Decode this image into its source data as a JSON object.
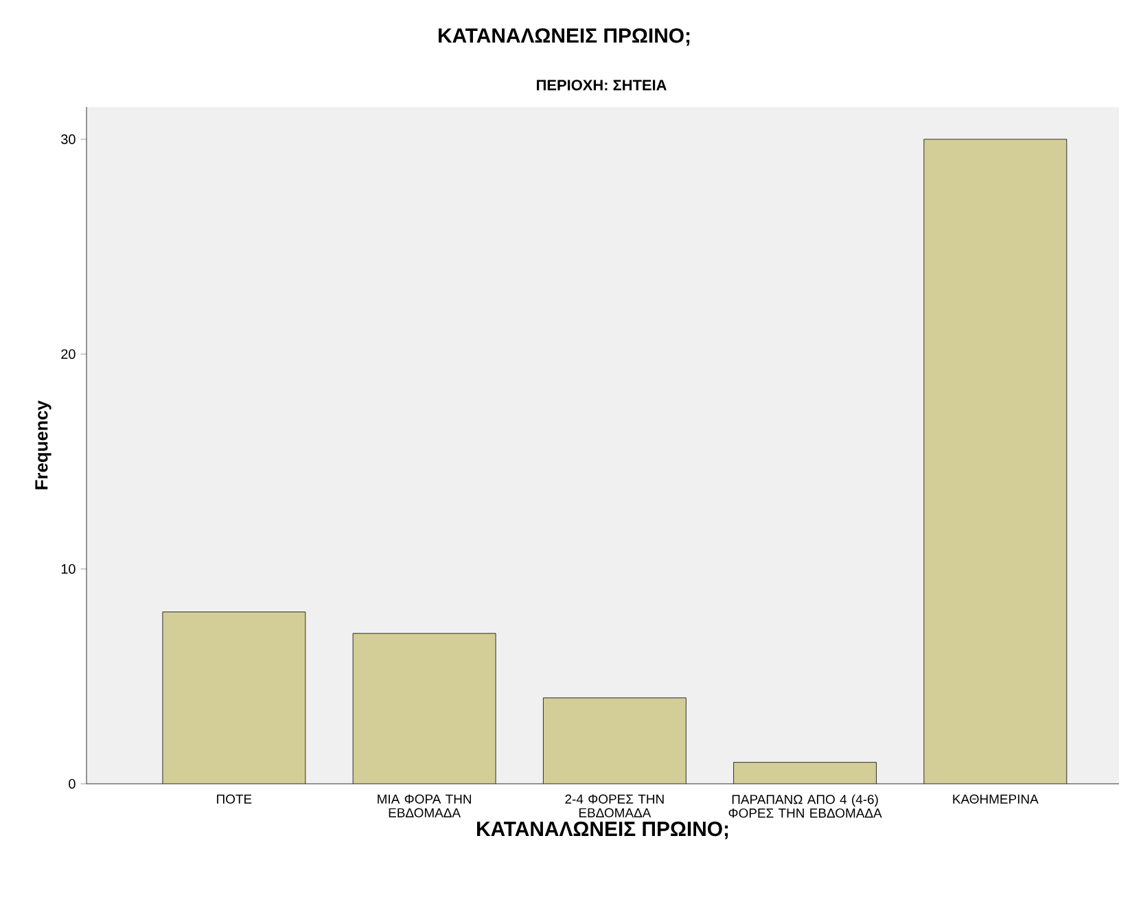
{
  "chart_data": {
    "type": "bar",
    "title": "ΚΑΤΑΝΑΛΩΝΕΙΣ ΠΡΩΙΝΟ;",
    "subtitle": "ΠΕΡΙΟΧΗ: ΣΗΤΕΙΑ",
    "xlabel": "ΚΑΤΑΝΑΛΩΝΕΙΣ ΠΡΩΙΝΟ;",
    "ylabel": "Frequency",
    "categories": [
      "ΠΟΤΕ",
      "ΜΙΑ ΦΟΡΑ ΤΗΝ ΕΒΔΟΜΑΔΑ",
      "2-4 ΦΟΡΕΣ ΤΗΝ ΕΒΔΟΜΑΔΑ",
      "ΠΑΡΑΠΑΝΩ ΑΠΟ 4 (4-6) ΦΟΡΕΣ ΤΗΝ ΕΒΔΟΜΑΔΑ",
      "ΚΑΘΗΜΕΡΙΝΑ"
    ],
    "values": [
      8,
      7,
      4,
      1,
      30
    ],
    "color": "#d3ce97",
    "ylim": [
      0,
      31.5
    ],
    "yticks": [
      0,
      10,
      20,
      30
    ],
    "grid": false
  }
}
